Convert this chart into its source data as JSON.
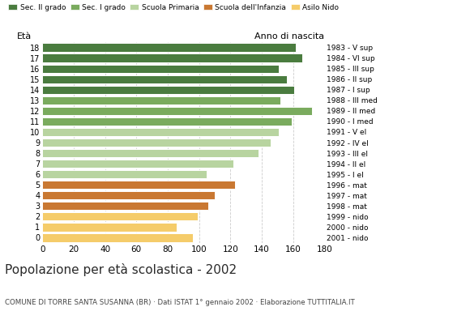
{
  "ages": [
    18,
    17,
    16,
    15,
    14,
    13,
    12,
    11,
    10,
    9,
    8,
    7,
    6,
    5,
    4,
    3,
    2,
    1,
    0
  ],
  "values": [
    162,
    166,
    151,
    156,
    161,
    152,
    172,
    159,
    151,
    146,
    138,
    122,
    105,
    123,
    110,
    106,
    99,
    86,
    96
  ],
  "right_labels": [
    "1983 - V sup",
    "1984 - VI sup",
    "1985 - III sup",
    "1986 - II sup",
    "1987 - I sup",
    "1988 - III med",
    "1989 - II med",
    "1990 - I med",
    "1991 - V el",
    "1992 - IV el",
    "1993 - III el",
    "1994 - II el",
    "1995 - I el",
    "1996 - mat",
    "1997 - mat",
    "1998 - mat",
    "1999 - nido",
    "2000 - nido",
    "2001 - nido"
  ],
  "colors": [
    "#4a7c3f",
    "#4a7c3f",
    "#4a7c3f",
    "#4a7c3f",
    "#4a7c3f",
    "#7aab5e",
    "#7aab5e",
    "#7aab5e",
    "#b8d4a0",
    "#b8d4a0",
    "#b8d4a0",
    "#b8d4a0",
    "#b8d4a0",
    "#c97832",
    "#c97832",
    "#c97832",
    "#f5cc6a",
    "#f5cc6a",
    "#f5cc6a"
  ],
  "legend_labels": [
    "Sec. II grado",
    "Sec. I grado",
    "Scuola Primaria",
    "Scuola dell'Infanzia",
    "Asilo Nido"
  ],
  "legend_colors": [
    "#4a7c3f",
    "#7aab5e",
    "#b8d4a0",
    "#c97832",
    "#f5cc6a"
  ],
  "xlim": [
    0,
    180
  ],
  "xticks": [
    0,
    20,
    40,
    60,
    80,
    100,
    120,
    140,
    160,
    180
  ],
  "title": "Popolazione per età scolastica - 2002",
  "subtitle": "COMUNE DI TORRE SANTA SUSANNA (BR) · Dati ISTAT 1° gennaio 2002 · Elaborazione TUTTITALIA.IT",
  "eta_label": "Età",
  "anno_label": "Anno di nascita",
  "background_color": "#ffffff",
  "grid_color": "#cccccc"
}
